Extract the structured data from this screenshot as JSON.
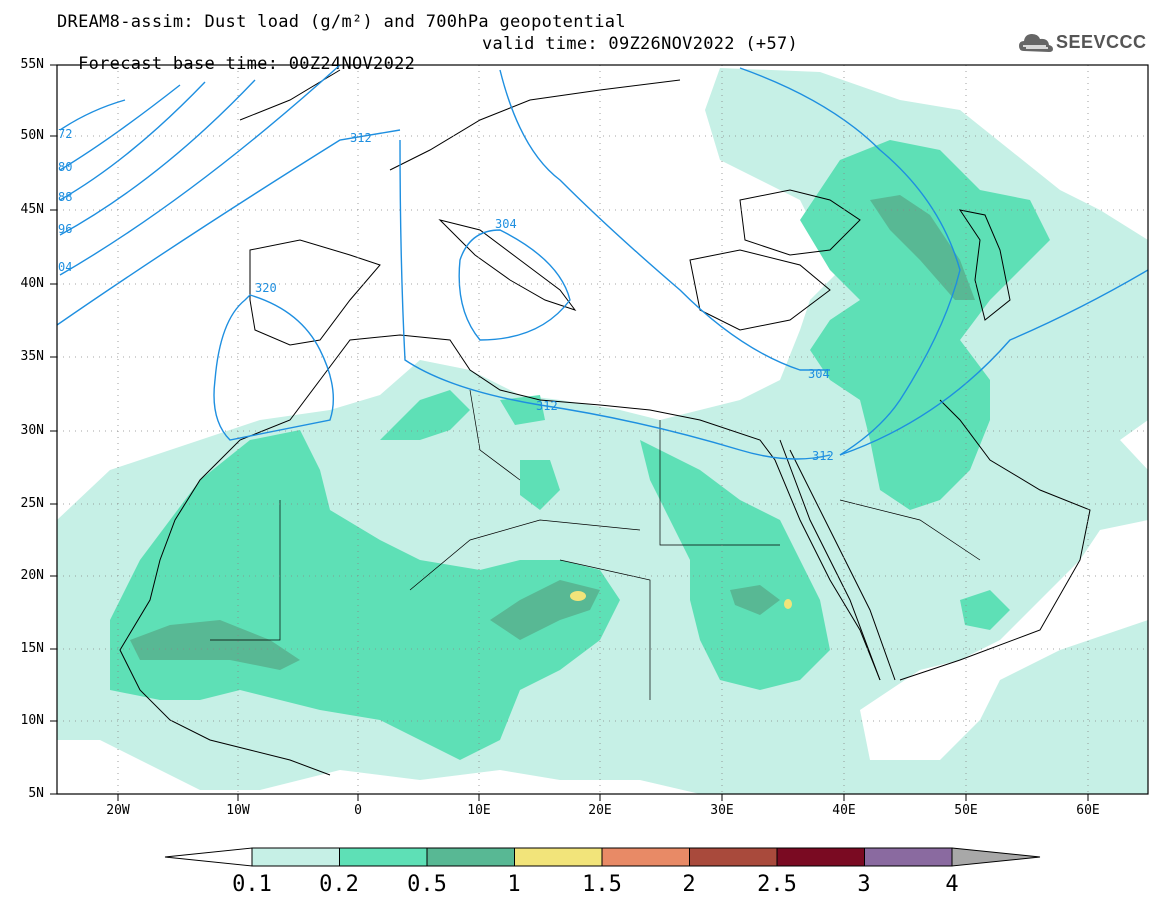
{
  "title": {
    "line1": "DREAM8-assim: Dust load (g/m²) and 700hPa geopotential",
    "line2_left": "Forecast base time: 00Z24NOV2022",
    "line2_right": "valid time: 09Z26NOV2022 (+57)"
  },
  "logo": {
    "text": "SEEVCCC",
    "icon": "cloud-logo-icon"
  },
  "axes": {
    "lat_labels": [
      "55N",
      "50N",
      "45N",
      "40N",
      "35N",
      "30N",
      "25N",
      "20N",
      "15N",
      "10N",
      "5N"
    ],
    "lon_labels": [
      "20W",
      "10W",
      "0",
      "10E",
      "20E",
      "30E",
      "40E",
      "50E",
      "60E"
    ]
  },
  "contour_labels": [
    "72",
    "80",
    "88",
    "96",
    "04",
    "312",
    "320",
    "304",
    "304",
    "312",
    "312"
  ],
  "colorbar": {
    "labels": [
      "0.1",
      "0.2",
      "0.5",
      "1",
      "1.5",
      "2",
      "2.5",
      "3",
      "4"
    ],
    "colors": [
      "#ffffff",
      "#c6f0e6",
      "#5ee0b6",
      "#58b894",
      "#f2e47a",
      "#e88a66",
      "#a94a3c",
      "#7a0a22",
      "#8a6aa0",
      "#a8a8a8"
    ]
  },
  "map_colors": {
    "light_dust": "#c6f0e6",
    "medium_dust": "#5ee0b6",
    "heavy_dust": "#58b894",
    "peak_dust": "#f2e47a",
    "contour": "#1e8fe0",
    "coast": "#000000"
  }
}
